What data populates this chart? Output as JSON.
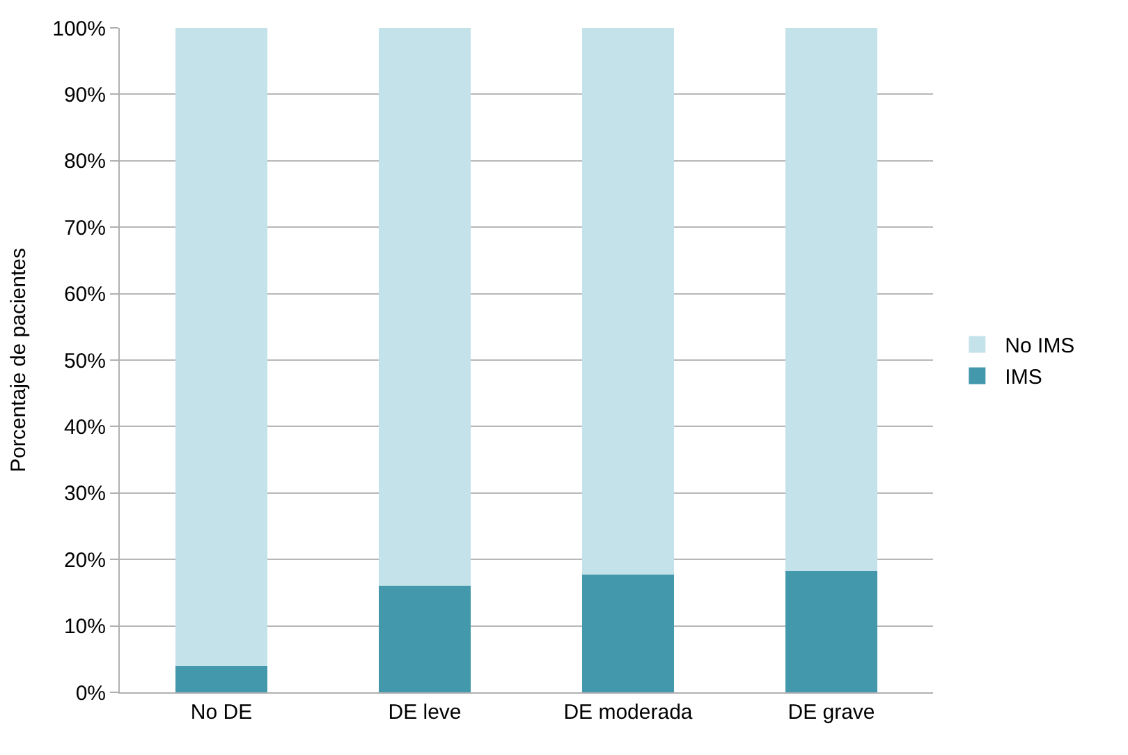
{
  "chart_data": {
    "type": "bar",
    "stacked": true,
    "ylabel": "Porcentaje de pacientes",
    "categories": [
      "No DE",
      "DE leve",
      "DE moderada",
      "DE grave"
    ],
    "series": [
      {
        "name": "IMS",
        "color": "#4398ab",
        "values": [
          4,
          16,
          17.7,
          18.2
        ]
      },
      {
        "name": "No IMS",
        "color": "#c4e2ea",
        "values": [
          96,
          84,
          82.3,
          81.8
        ]
      }
    ],
    "ylim": [
      0,
      100
    ],
    "yticks": [
      {
        "value": 0,
        "label": "0%"
      },
      {
        "value": 10,
        "label": "10%"
      },
      {
        "value": 20,
        "label": "20%"
      },
      {
        "value": 30,
        "label": "30%"
      },
      {
        "value": 40,
        "label": "40%"
      },
      {
        "value": 50,
        "label": "50%"
      },
      {
        "value": 60,
        "label": "60%"
      },
      {
        "value": 70,
        "label": "70%"
      },
      {
        "value": 80,
        "label": "80%"
      },
      {
        "value": 90,
        "label": "90%"
      },
      {
        "value": 100,
        "label": "100%"
      }
    ],
    "grid": "y",
    "legend": "right"
  }
}
